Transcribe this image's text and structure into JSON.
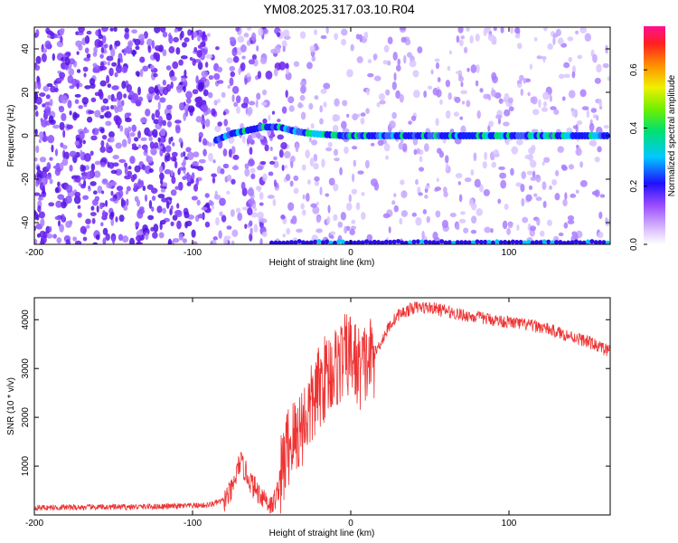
{
  "title": "YM08.2025.317.03.10.R04",
  "chart_data": [
    {
      "type": "heatmap",
      "xlabel": "Height of straight line (km)",
      "ylabel": "Frequency (Hz)",
      "xlim": [
        -200,
        164
      ],
      "ylim": [
        -50,
        50
      ],
      "x_ticks": [
        -200,
        -100,
        0,
        100
      ],
      "y_ticks": [
        -40,
        -20,
        0,
        20,
        40
      ],
      "colorbar": {
        "label": "Normalized spectral amplitude",
        "range": [
          0,
          0.75
        ],
        "ticks": [
          0.0,
          0.2,
          0.4,
          0.6
        ]
      },
      "features": [
        {
          "kind": "ridge",
          "x": [
            -85,
            -75,
            -65,
            -55,
            -45,
            -35,
            -25,
            -15,
            -5,
            0,
            25,
            50,
            75,
            100,
            125,
            150,
            164
          ],
          "y": [
            -2,
            1,
            2.5,
            4,
            4,
            2,
            1,
            0.5,
            0,
            0,
            0,
            0,
            0,
            0,
            0,
            0,
            0
          ]
        },
        {
          "kind": "alias-band",
          "x": [
            -50,
            164
          ],
          "y": [
            -49,
            -49
          ]
        }
      ],
      "colors": {
        "low": "#e6d9ff",
        "mid": "#6020e8",
        "high": "#ff2a8a"
      }
    },
    {
      "type": "line",
      "xlabel": "Height of straight line (km)",
      "ylabel": "SNR (10 * v/v)",
      "xlim": [
        -200,
        164
      ],
      "ylim": [
        0,
        4450
      ],
      "x_ticks": [
        -200,
        -100,
        0,
        100
      ],
      "y_ticks": [
        1000,
        2000,
        3000,
        4000
      ],
      "series": [
        {
          "color": "#ee3333",
          "x": [
            -200,
            -150,
            -110,
            -90,
            -80,
            -75,
            -70,
            -66,
            -62,
            -58,
            -54,
            -50,
            -45,
            -40,
            -35,
            -30,
            -25,
            -20,
            -15,
            -10,
            -5,
            0,
            5,
            10,
            15,
            20,
            25,
            30,
            40,
            50,
            60,
            70,
            80,
            90,
            100,
            110,
            120,
            130,
            140,
            150,
            160,
            164
          ],
          "y": [
            150,
            160,
            180,
            200,
            300,
            500,
            1100,
            850,
            600,
            450,
            350,
            150,
            600,
            1400,
            1600,
            1900,
            2200,
            2600,
            2900,
            3000,
            3200,
            3300,
            3000,
            3100,
            3300,
            3600,
            3900,
            4100,
            4250,
            4250,
            4180,
            4100,
            4050,
            4000,
            3950,
            3900,
            3850,
            3750,
            3650,
            3550,
            3400,
            3350
          ]
        }
      ]
    }
  ]
}
